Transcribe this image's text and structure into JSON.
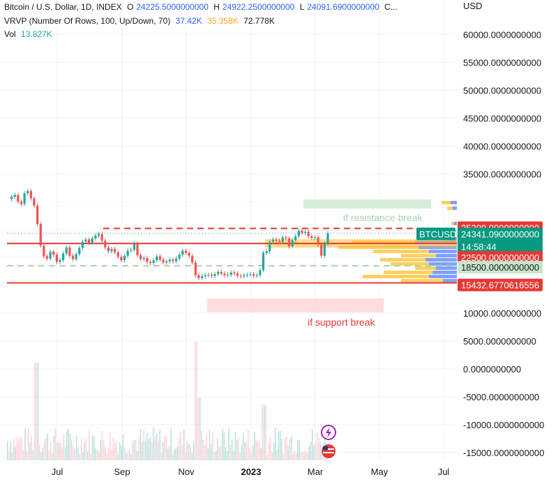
{
  "legend": {
    "symbol": "Bitcoin / U.S. Dollar, 1D, INDEX",
    "o_label": "O",
    "o_value": "24225.5000000000",
    "h_label": "H",
    "h_value": "24922.2500000000",
    "l_label": "L",
    "l_value": "24091.6900000000",
    "c_label": "C...",
    "vrvp_label": "VRVP (Number Of Rows, 100, Up/Down, 70)",
    "vrvp_v1": "37.42K",
    "vrvp_v2": "35.358K",
    "vrvp_v3": "72.778K",
    "vol_label": "Vol",
    "vol_value": "13.827K"
  },
  "currency": "USD",
  "annotations": {
    "resistance": "if resistance break",
    "support": "if support break"
  },
  "price_tags": {
    "ticker": "BTCUSD",
    "current": "24341.0900000000",
    "countdown": "14:58:44",
    "res": "25200.0000000000",
    "mid": "22500.0000000000",
    "sup": "18500.0000000000",
    "low": "15432.6770616556"
  },
  "colors": {
    "red": "#e53935",
    "green_tag": "#089981",
    "light_green": "#c8e6c9",
    "light_red": "#ffcdd2",
    "up": "#26a69a",
    "down": "#ef5350",
    "vp_orange": "#fbc02d",
    "vp_blue": "#2962ff"
  },
  "chart_data": {
    "type": "line",
    "title": "Bitcoin / U.S. Dollar, 1D, INDEX",
    "ylim": [
      -17000,
      64500
    ],
    "y_ticks": [
      60000,
      55000,
      50000,
      45000,
      40000,
      35000,
      30000,
      25000,
      20000,
      15000,
      10000,
      5000,
      0,
      -5000,
      -10000,
      -15000
    ],
    "y_tick_labels": [
      "60000.0000000000",
      "55000.0000000000",
      "50000.0000000000",
      "45000.0000000000",
      "40000.0000000000",
      "35000.0000000000",
      "",
      "",
      "",
      "",
      "10000.0000000000",
      "5000.0000000000",
      "0.0000000000",
      "-5000.0000000000",
      "-10000.0000000000",
      "-15000.0000000000"
    ],
    "x_tick_labels": [
      "Jul",
      "Sep",
      "Nov",
      "2023",
      "Mar",
      "May",
      "Jul"
    ],
    "price_series": [
      30500,
      30900,
      31200,
      30000,
      29600,
      31500,
      31900,
      30600,
      29300,
      26000,
      22100,
      20200,
      19800,
      21000,
      20500,
      19200,
      19500,
      20700,
      21800,
      20300,
      19700,
      20600,
      21700,
      22800,
      23200,
      22600,
      23400,
      23900,
      24200,
      23000,
      21800,
      21100,
      21500,
      20900,
      20100,
      19500,
      20300,
      21200,
      21400,
      22500,
      20400,
      19700,
      19900,
      19200,
      19000,
      19500,
      20200,
      19600,
      19100,
      19300,
      19600,
      19300,
      19800,
      20500,
      21200,
      20800,
      20300,
      19100,
      16800,
      16300,
      16600,
      16800,
      16900,
      16700,
      17000,
      17400,
      17100,
      16800,
      16900,
      17300,
      17100,
      16700,
      16600,
      16800,
      16900,
      17000,
      16700,
      16800,
      17700,
      20800,
      21100,
      22800,
      23200,
      23000,
      22800,
      23600,
      23400,
      22000,
      23100,
      23800,
      24800,
      24400,
      24600,
      23800,
      23500,
      23600,
      22300,
      20300,
      22500,
      24341
    ],
    "levels": {
      "resistance": 25200,
      "mid": 22500,
      "support": 18500,
      "low": 15432.68
    }
  }
}
